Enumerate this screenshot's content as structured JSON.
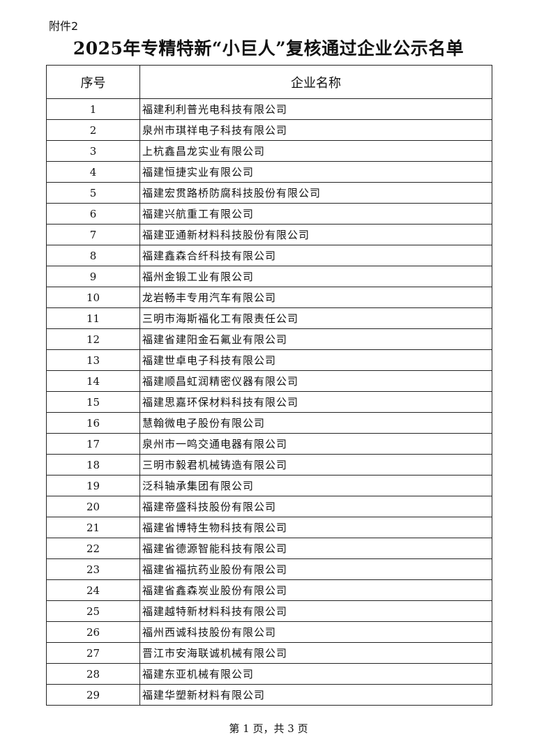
{
  "attachment_label": "附件2",
  "title": "2025年专精特新“小巨人”复核通过企业公示名单",
  "table": {
    "headers": [
      "序号",
      "企业名称"
    ],
    "rows": [
      [
        "1",
        "福建利利普光电科技有限公司"
      ],
      [
        "2",
        "泉州市琪祥电子科技有限公司"
      ],
      [
        "3",
        "上杭鑫昌龙实业有限公司"
      ],
      [
        "4",
        "福建恒捷实业有限公司"
      ],
      [
        "5",
        "福建宏贯路桥防腐科技股份有限公司"
      ],
      [
        "6",
        "福建兴航重工有限公司"
      ],
      [
        "7",
        "福建亚通新材料科技股份有限公司"
      ],
      [
        "8",
        "福建鑫森合纤科技有限公司"
      ],
      [
        "9",
        "福州金锻工业有限公司"
      ],
      [
        "10",
        "龙岩畅丰专用汽车有限公司"
      ],
      [
        "11",
        "三明市海斯福化工有限责任公司"
      ],
      [
        "12",
        "福建省建阳金石氟业有限公司"
      ],
      [
        "13",
        "福建世卓电子科技有限公司"
      ],
      [
        "14",
        "福建顺昌虹润精密仪器有限公司"
      ],
      [
        "15",
        "福建思嘉环保材料科技有限公司"
      ],
      [
        "16",
        "慧翰微电子股份有限公司"
      ],
      [
        "17",
        "泉州市一鸣交通电器有限公司"
      ],
      [
        "18",
        "三明市毅君机械铸造有限公司"
      ],
      [
        "19",
        "泛科轴承集团有限公司"
      ],
      [
        "20",
        "福建帝盛科技股份有限公司"
      ],
      [
        "21",
        "福建省博特生物科技有限公司"
      ],
      [
        "22",
        "福建省德源智能科技有限公司"
      ],
      [
        "23",
        "福建省福抗药业股份有限公司"
      ],
      [
        "24",
        "福建省鑫森炭业股份有限公司"
      ],
      [
        "25",
        "福建越特新材料科技有限公司"
      ],
      [
        "26",
        "福州西诚科技股份有限公司"
      ],
      [
        "27",
        "晋江市安海联诚机械有限公司"
      ],
      [
        "28",
        "福建东亚机械有限公司"
      ],
      [
        "29",
        "福建华塑新材料有限公司"
      ]
    ]
  },
  "footer": "第 1 页，共 3 页"
}
